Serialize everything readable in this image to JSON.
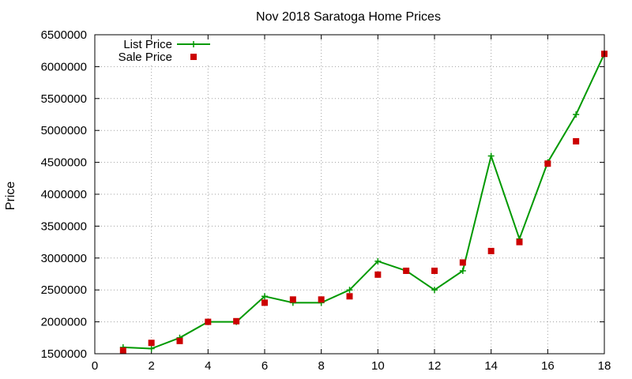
{
  "chart_data": {
    "type": "line",
    "title": "Nov 2018 Saratoga Home Prices",
    "xlabel": "",
    "ylabel": "Price",
    "xlim": [
      0,
      18
    ],
    "ylim": [
      1500000,
      6500000
    ],
    "xticks": [
      0,
      2,
      4,
      6,
      8,
      10,
      12,
      14,
      16,
      18
    ],
    "yticks": [
      1500000,
      2000000,
      2500000,
      3000000,
      3500000,
      4000000,
      4500000,
      5000000,
      5500000,
      6000000,
      6500000
    ],
    "grid": true,
    "legend_position": "top-left",
    "series": [
      {
        "name": "List Price",
        "style": "line-points",
        "color": "#009900",
        "x": [
          1,
          2,
          3,
          4,
          5,
          6,
          7,
          8,
          9,
          10,
          11,
          12,
          13,
          14,
          15,
          16,
          17,
          18
        ],
        "y": [
          1600000,
          1580000,
          1750000,
          2000000,
          2000000,
          2400000,
          2300000,
          2300000,
          2500000,
          2950000,
          2800000,
          2500000,
          2800000,
          4600000,
          3300000,
          4500000,
          5250000,
          6200000
        ]
      },
      {
        "name": "Sale Price",
        "style": "points",
        "color": "#cc0000",
        "x": [
          1,
          2,
          3,
          4,
          5,
          6,
          7,
          8,
          9,
          10,
          11,
          12,
          13,
          14,
          15,
          16,
          17,
          18
        ],
        "y": [
          1550000,
          1670000,
          1700000,
          2000000,
          2010000,
          2300000,
          2350000,
          2350000,
          2400000,
          2740000,
          2800000,
          2800000,
          2930000,
          3110000,
          3250000,
          4480000,
          4830000,
          6200000
        ]
      }
    ]
  }
}
